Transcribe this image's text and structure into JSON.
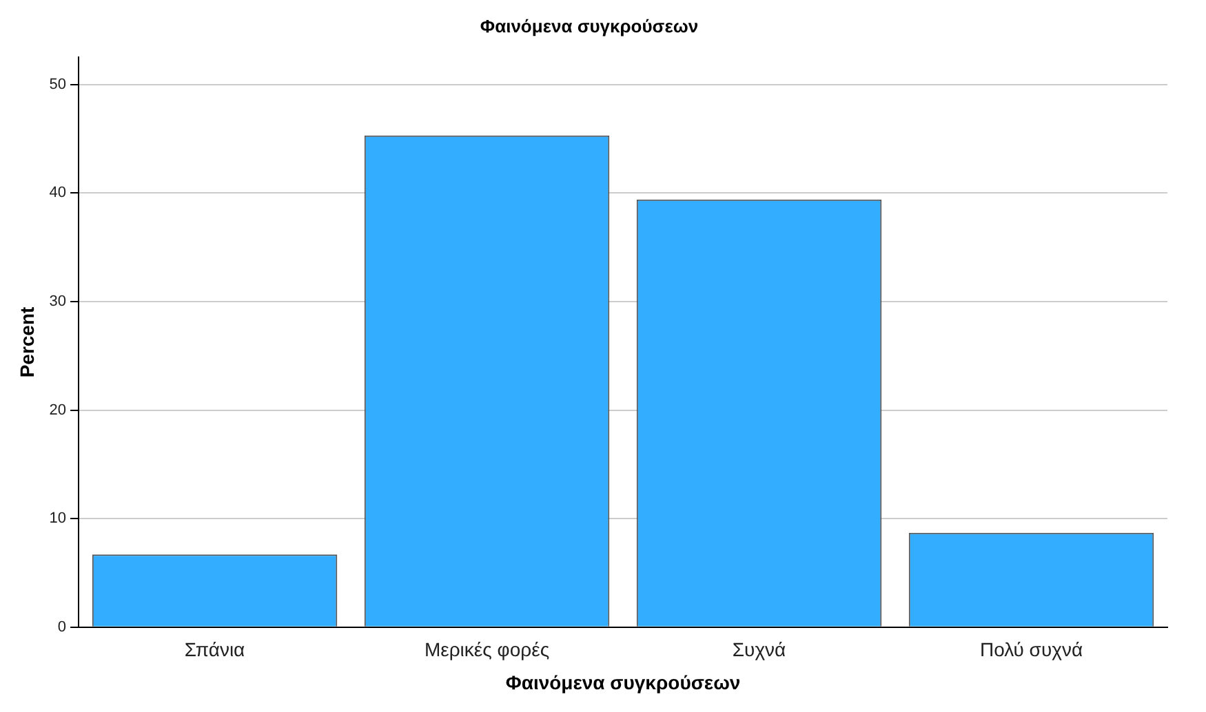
{
  "chart_data": {
    "type": "bar",
    "title": "Φαινόμενα συγκρούσεων",
    "xlabel": "Φαινόμενα συγκρούσεων",
    "ylabel": "Percent",
    "categories": [
      "Σπάνια",
      "Μερικές φορές",
      "Συχνά",
      "Πολύ συχνά"
    ],
    "values": [
      6.7,
      45.3,
      39.4,
      8.7
    ],
    "color": "#33adff",
    "ylim": [
      0,
      52.5
    ],
    "yticks": [
      0,
      10,
      20,
      30,
      40,
      50
    ],
    "grid": "y",
    "legend": false
  }
}
